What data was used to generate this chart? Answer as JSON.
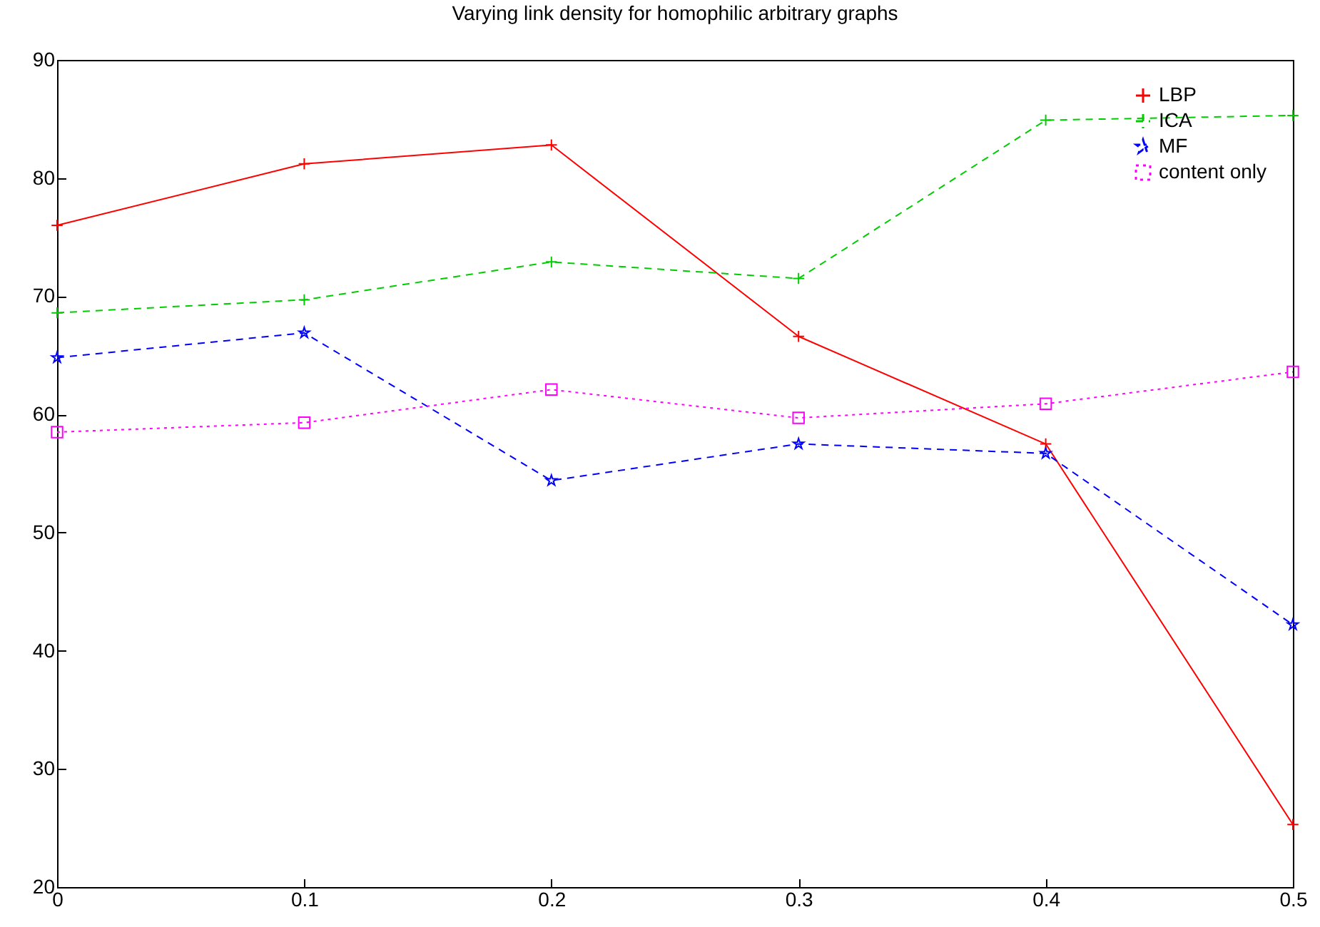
{
  "chart_data": {
    "type": "line",
    "title": "Varying link density for homophilic arbitrary graphs",
    "x": [
      0,
      0.1,
      0.2,
      0.3,
      0.4,
      0.5
    ],
    "series": [
      {
        "name": "LBP",
        "color": "#ff0000",
        "marker": "cross",
        "line_style": "solid",
        "values": [
          76.0,
          81.2,
          82.8,
          66.6,
          57.5,
          25.3
        ]
      },
      {
        "name": "ICA",
        "color": "#00cc00",
        "marker": "cross",
        "line_style": "dashed",
        "values": [
          68.6,
          69.7,
          72.9,
          71.5,
          84.9,
          85.3
        ]
      },
      {
        "name": "MF",
        "color": "#0000ff",
        "marker": "star",
        "line_style": "dashed",
        "values": [
          64.8,
          66.9,
          54.4,
          57.5,
          56.7,
          42.2
        ]
      },
      {
        "name": "content only",
        "color": "#ff00ff",
        "marker": "square",
        "line_style": "dotted",
        "values": [
          58.5,
          59.3,
          62.1,
          59.7,
          60.9,
          63.6
        ]
      }
    ],
    "xlim": [
      0,
      0.5
    ],
    "xticks": [
      0,
      0.1,
      0.2,
      0.3,
      0.4,
      0.5
    ],
    "ylim": [
      20,
      90
    ],
    "yticks": [
      20,
      30,
      40,
      50,
      60,
      70,
      80,
      90
    ],
    "grid": false,
    "legend": "top right"
  }
}
